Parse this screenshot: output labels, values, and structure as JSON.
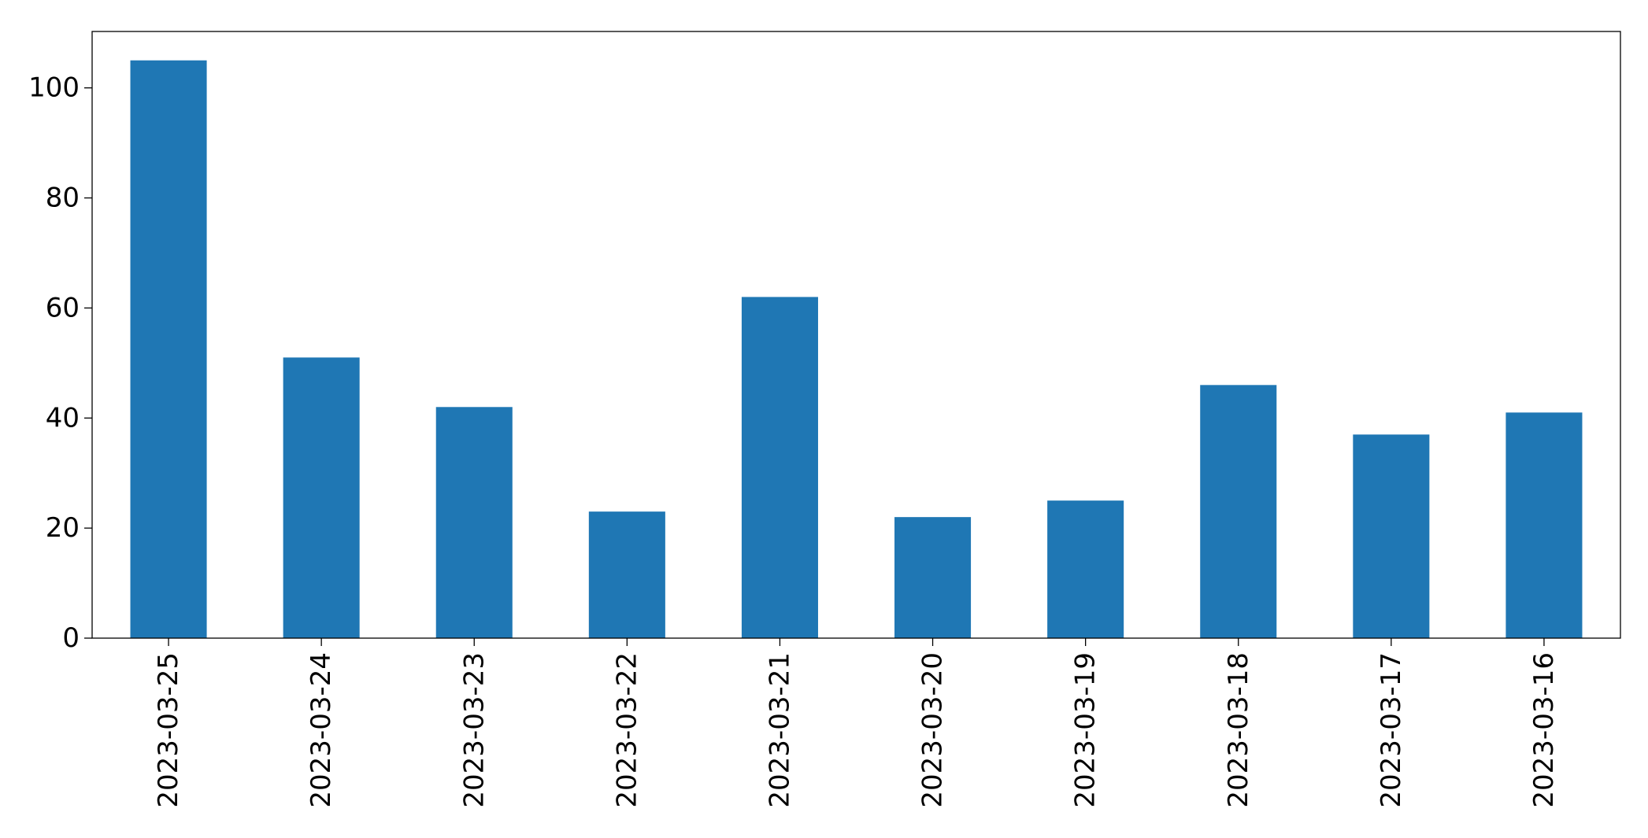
{
  "chart_data": {
    "type": "bar",
    "title": "",
    "xlabel": "",
    "ylabel": "",
    "categories": [
      "2023-03-25",
      "2023-03-24",
      "2023-03-23",
      "2023-03-22",
      "2023-03-21",
      "2023-03-20",
      "2023-03-19",
      "2023-03-18",
      "2023-03-17",
      "2023-03-16"
    ],
    "values": [
      105,
      51,
      42,
      23,
      62,
      22,
      25,
      46,
      37,
      41
    ],
    "ylim": [
      0,
      110.25
    ],
    "yticks": [
      "0",
      "20",
      "40",
      "60",
      "80",
      "100"
    ],
    "grid": false,
    "legend": "none",
    "bar_color": "#1f77b4"
  }
}
